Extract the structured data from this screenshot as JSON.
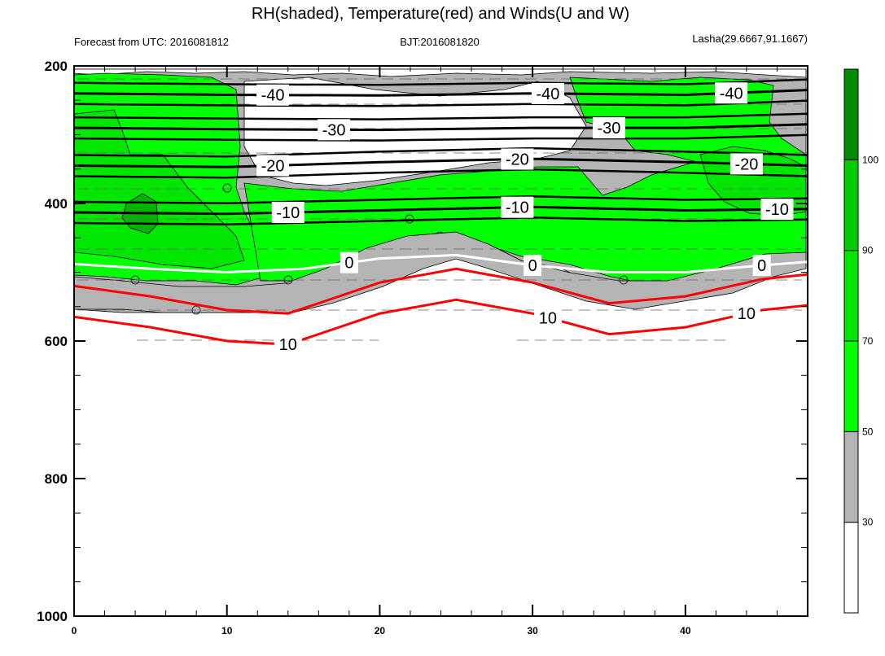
{
  "chart_data": {
    "type": "contour",
    "title": "RH(shaded), Temperature(red) and Winds(U and W)",
    "subtitle_left": "Forecast from UTC: 2016081812",
    "subtitle_center": "BJT:2016081820",
    "subtitle_right": "Lasha(29.6667,91.1667)",
    "x_ticks": [
      "0",
      "10",
      "20",
      "30",
      "40"
    ],
    "x_tick_values": [
      0,
      10,
      20,
      30,
      40
    ],
    "xlim": [
      0,
      48
    ],
    "y_ticks": [
      "200",
      "400",
      "600",
      "800",
      "1000"
    ],
    "y_tick_values": [
      200,
      400,
      600,
      800,
      1000
    ],
    "ylim": [
      1000,
      200
    ],
    "colorbar_ticks": [
      "30",
      "50",
      "70",
      "90",
      "100"
    ],
    "colorbar_colors": [
      "#ffffff",
      "#b4b4b4",
      "#00ff00",
      "#00e600",
      "#00cc00",
      "#008c00"
    ],
    "rh_levels": [
      30,
      50,
      60,
      70,
      80,
      90,
      100
    ],
    "temperature_labels": [
      "-40",
      "-30",
      "-20",
      "-10",
      "0",
      "10"
    ],
    "temperature_contours": [
      {
        "level": -40,
        "x": [
          0,
          10,
          20,
          30,
          40,
          48
        ],
        "p": [
          240,
          242,
          243,
          240,
          242,
          235
        ]
      },
      {
        "level": -30,
        "x": [
          0,
          10,
          20,
          30,
          40,
          48
        ],
        "p": [
          290,
          292,
          293,
          290,
          290,
          285
        ]
      },
      {
        "level": -20,
        "x": [
          0,
          10,
          20,
          30,
          40,
          48
        ],
        "p": [
          345,
          347,
          340,
          335,
          340,
          345
        ]
      },
      {
        "level": -10,
        "x": [
          0,
          10,
          20,
          30,
          40,
          48
        ],
        "p": [
          413,
          415,
          410,
          405,
          410,
          408
        ]
      },
      {
        "level": 0,
        "x": [
          0,
          5,
          10,
          15,
          20,
          25,
          30,
          35,
          40,
          45,
          48
        ],
        "p": [
          488,
          495,
          500,
          495,
          480,
          475,
          490,
          500,
          500,
          490,
          485
        ]
      },
      {
        "level": 10,
        "x": [
          0,
          5,
          10,
          14,
          20,
          25,
          30,
          35,
          40,
          45,
          48
        ],
        "p": [
          565,
          580,
          600,
          605,
          560,
          540,
          560,
          590,
          580,
          555,
          548
        ]
      }
    ],
    "grid": false
  },
  "colors": {
    "temperature_negative": "#000000",
    "temperature_zero": "#ffffff",
    "temperature_positive": "#ff0000",
    "wind": "#555555"
  }
}
